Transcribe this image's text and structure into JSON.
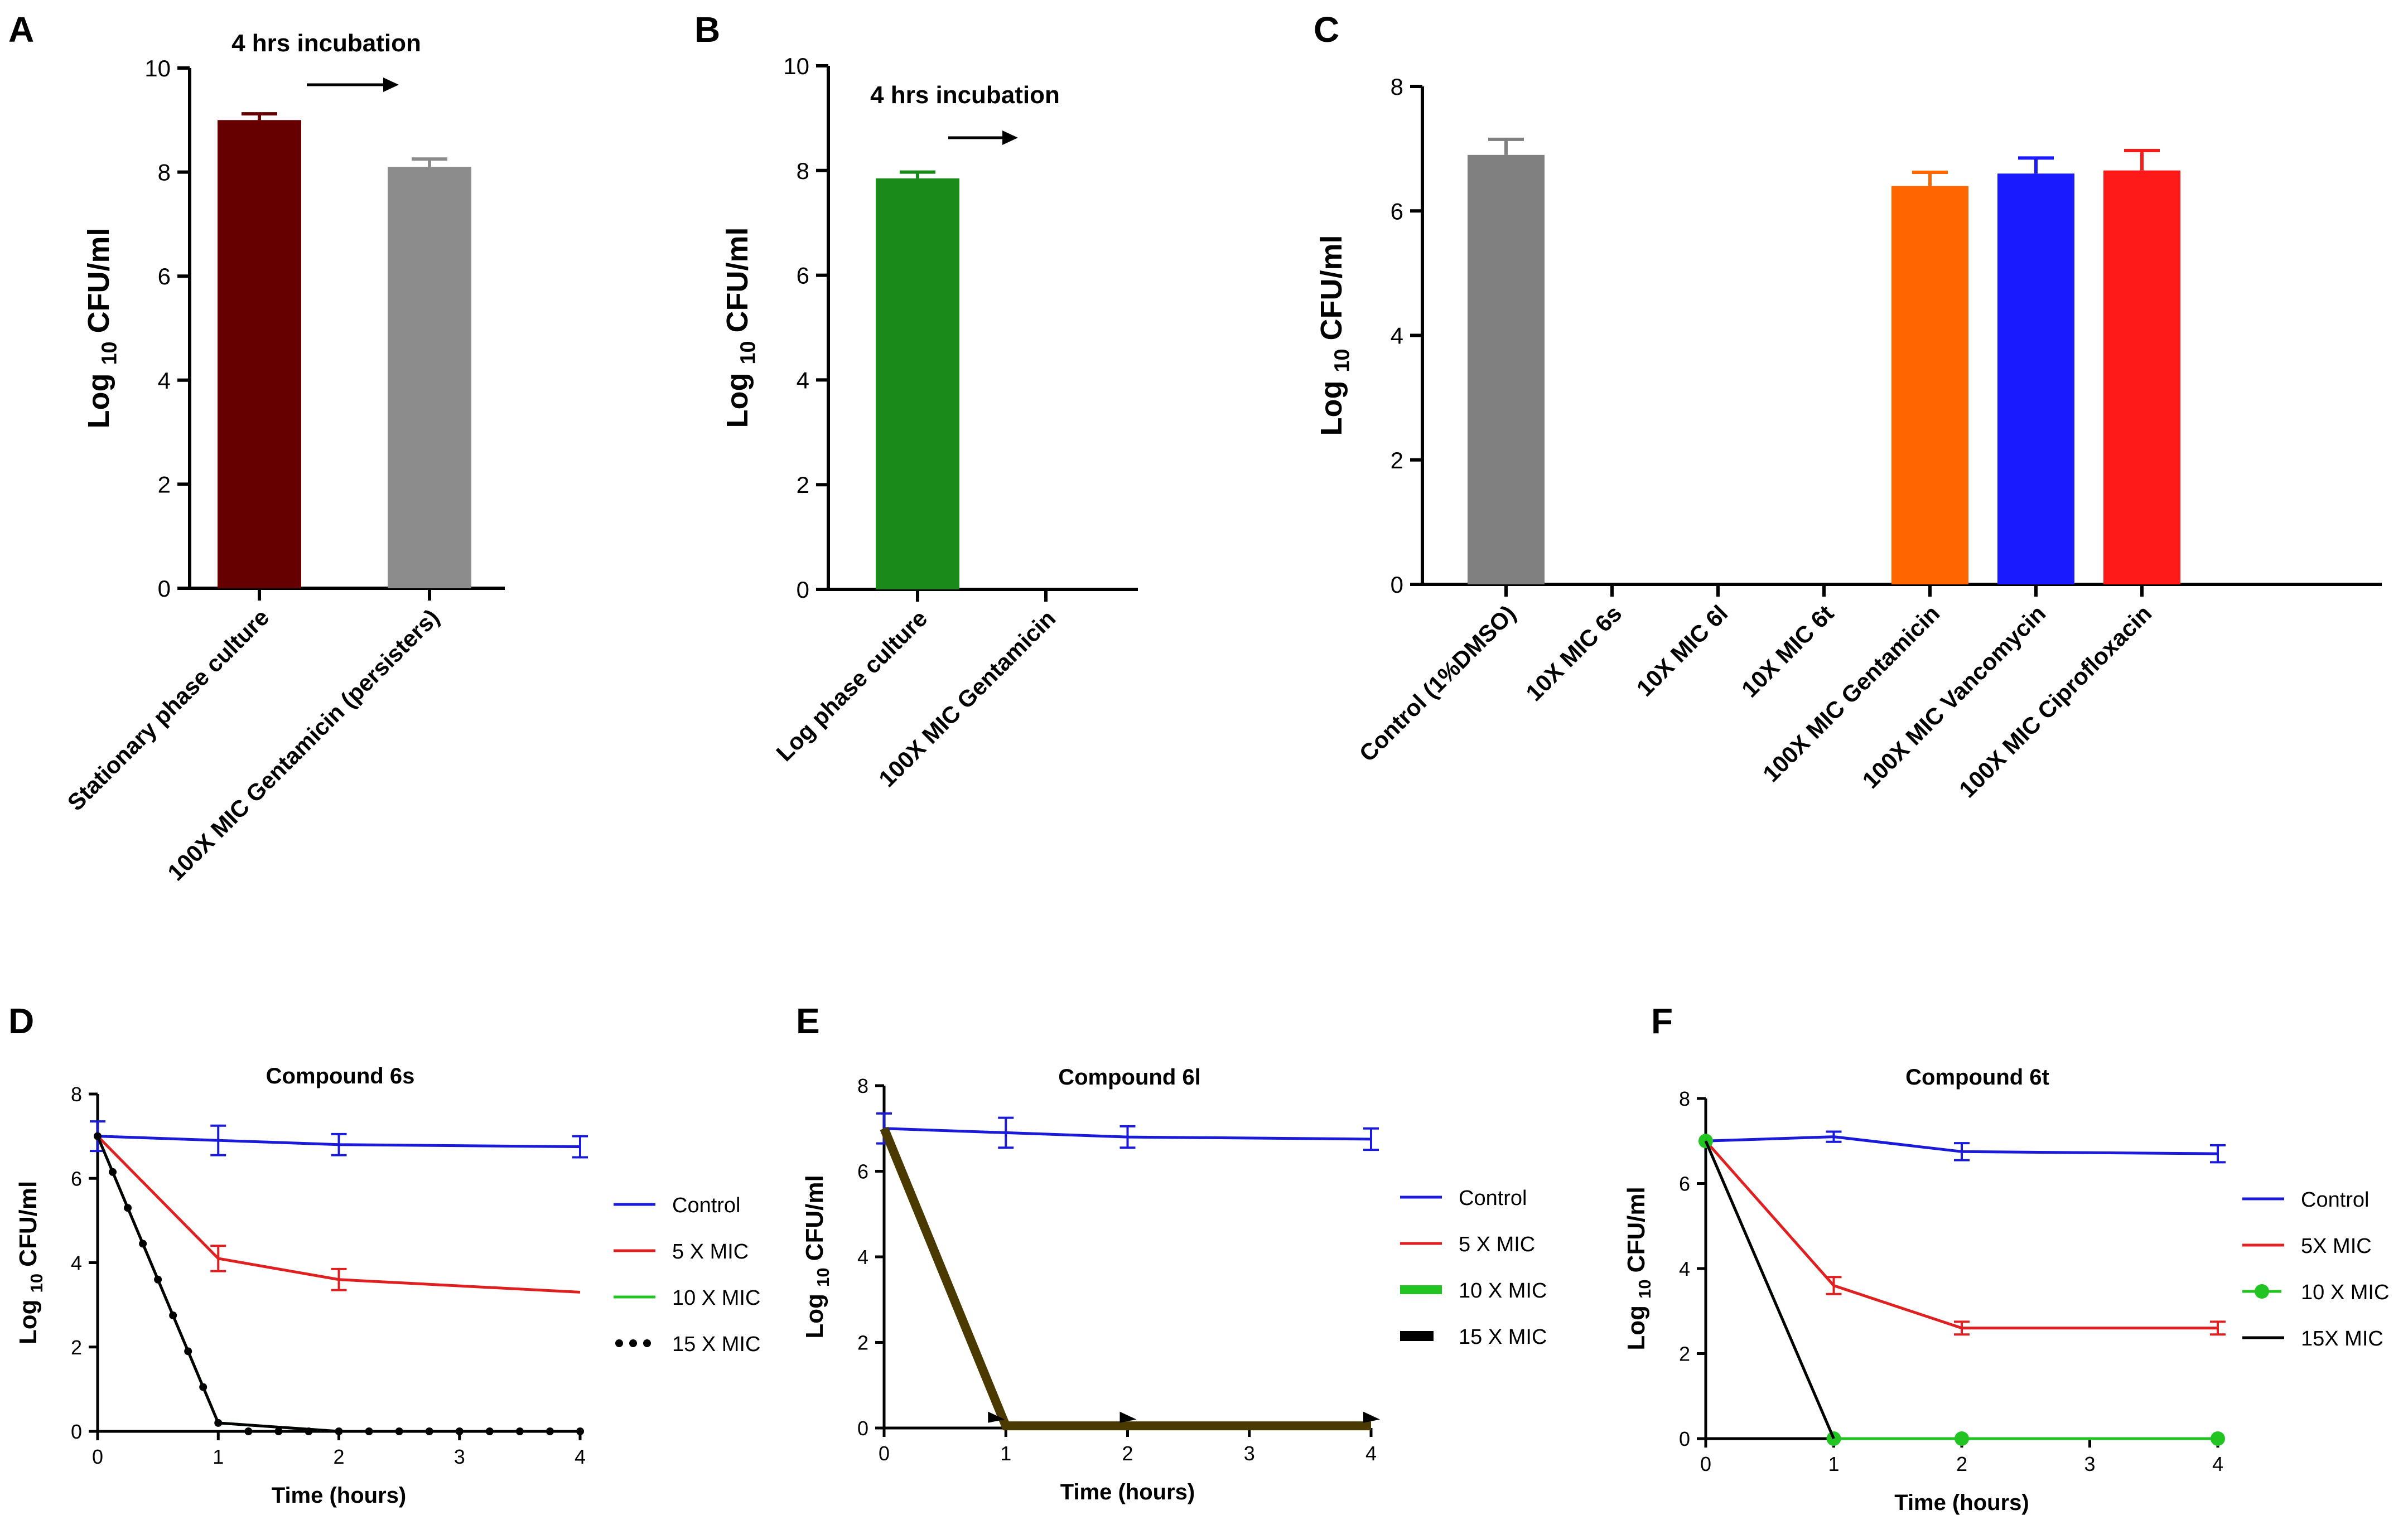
{
  "chart_data": [
    {
      "id": "A",
      "panel_label": "A",
      "type": "bar",
      "ylabel": "Log 10 CFU/ml",
      "ylabel_main": "Log",
      "ylabel_sub": "10",
      "ylabel_tail": "CFU/ml",
      "ylim": [
        0,
        10
      ],
      "yticks": [
        "0",
        "2",
        "4",
        "6",
        "8",
        "10"
      ],
      "annotation": "4 hrs incubation",
      "categories": [
        "Stationary phase culture",
        "100X MIC Gentamicin (persisters)"
      ],
      "values": [
        9.0,
        8.1
      ],
      "errors": [
        0.12,
        0.15
      ],
      "colors": [
        "#660000",
        "#8c8c8c"
      ]
    },
    {
      "id": "B",
      "panel_label": "B",
      "type": "bar",
      "ylabel": "Log 10 CFU/ml",
      "ylabel_main": "Log",
      "ylabel_sub": "10",
      "ylabel_tail": "CFU/ml",
      "ylim": [
        0,
        10
      ],
      "yticks": [
        "0",
        "2",
        "4",
        "6",
        "8",
        "10"
      ],
      "annotation": "4 hrs incubation",
      "categories": [
        "Log phase culture",
        "100X MIC Gentamicin"
      ],
      "values": [
        7.85,
        0
      ],
      "errors": [
        0.12,
        0
      ],
      "colors": [
        "#1a8a1a",
        "#1a8a1a"
      ]
    },
    {
      "id": "C",
      "panel_label": "C",
      "type": "bar",
      "ylabel": "Log 10 CFU/ml",
      "ylabel_main": "Log",
      "ylabel_sub": "10",
      "ylabel_tail": "CFU/ml",
      "ylim": [
        0,
        8
      ],
      "yticks": [
        "0",
        "2",
        "4",
        "6",
        "8"
      ],
      "categories": [
        "Control (1%DMSO)",
        "10X MIC 6s",
        "10X MIC 6l",
        "10X MIC 6t",
        "100X MIC Gentamicin",
        "100X MIC Vancomycin",
        "100X MIC Ciprofloxacin"
      ],
      "values": [
        6.9,
        0,
        0,
        0,
        6.4,
        6.6,
        6.65
      ],
      "errors": [
        0.25,
        0,
        0,
        0,
        0.22,
        0.25,
        0.32
      ],
      "colors": [
        "#808080",
        "#808080",
        "#808080",
        "#808080",
        "#ff6600",
        "#1a1aff",
        "#ff1a1a"
      ]
    },
    {
      "id": "D",
      "panel_label": "D",
      "type": "line",
      "title": "Compound 6s",
      "xlabel": "Time (hours)",
      "ylabel": "Log 10 CFU/ml",
      "ylabel_main": "Log",
      "ylabel_sub": "10",
      "ylabel_tail": "CFU/ml",
      "xlim": [
        0,
        4
      ],
      "ylim": [
        0,
        8
      ],
      "xticks": [
        "0",
        "1",
        "2",
        "3",
        "4"
      ],
      "yticks": [
        "0",
        "2",
        "4",
        "6",
        "8"
      ],
      "series": [
        {
          "name": "Control",
          "color": "#1a1adb",
          "marker": "none",
          "x": [
            0,
            1,
            2,
            4
          ],
          "y": [
            7.0,
            6.9,
            6.8,
            6.75
          ],
          "err": [
            0.35,
            0.35,
            0.25,
            0.25
          ]
        },
        {
          "name": "5 X MIC",
          "color": "#e02020",
          "marker": "none",
          "x": [
            0,
            1,
            2,
            4
          ],
          "y": [
            7.0,
            4.1,
            3.6,
            3.3
          ],
          "err": [
            0,
            0.3,
            0.25,
            0
          ]
        },
        {
          "name": "10 X MIC",
          "color": "#22c422",
          "marker": "none",
          "x": [
            0,
            1,
            2,
            4
          ],
          "y": [
            7.0,
            0.2,
            0,
            0
          ],
          "err": [
            0,
            0,
            0,
            0
          ]
        },
        {
          "name": "15 X MIC",
          "color": "#000000",
          "marker": "dots",
          "x": [
            0,
            1,
            2,
            4
          ],
          "y": [
            7.0,
            0.2,
            0,
            0
          ],
          "err": [
            0,
            0,
            0,
            0
          ]
        }
      ]
    },
    {
      "id": "E",
      "panel_label": "E",
      "type": "line",
      "title": "Compound 6l",
      "xlabel": "Time (hours)",
      "ylabel": "Log 10 CFU/ml",
      "ylabel_main": "Log",
      "ylabel_sub": "10",
      "ylabel_tail": "CFU/ml",
      "xlim": [
        0,
        4
      ],
      "ylim": [
        0,
        8
      ],
      "xticks": [
        "0",
        "1",
        "2",
        "3",
        "4"
      ],
      "yticks": [
        "0",
        "2",
        "4",
        "6",
        "8"
      ],
      "series": [
        {
          "name": "Control",
          "color": "#1a1adb",
          "marker": "none",
          "x": [
            0,
            1,
            2,
            4
          ],
          "y": [
            7.0,
            6.9,
            6.8,
            6.75
          ],
          "err": [
            0.35,
            0.35,
            0.25,
            0.25
          ]
        },
        {
          "name": "5 X MIC",
          "color": "#e02020",
          "marker": "none",
          "x": [
            0,
            1,
            2,
            4
          ],
          "y": [
            7.0,
            0.05,
            0.05,
            0.05
          ],
          "err": [
            0,
            0,
            0,
            0
          ]
        },
        {
          "name": "10 X MIC",
          "color": "#22c422",
          "marker": "none",
          "x": [
            0,
            1,
            2,
            4
          ],
          "y": [
            7.0,
            0.05,
            0.05,
            0.05
          ],
          "err": [
            0,
            0,
            0,
            0
          ]
        },
        {
          "name": "15 X MIC",
          "color": "#000000",
          "marker": "triangles",
          "x": [
            0,
            1,
            2,
            4
          ],
          "y": [
            7.0,
            0.05,
            0.05,
            0.05
          ],
          "err": [
            0,
            0,
            0,
            0
          ]
        }
      ]
    },
    {
      "id": "F",
      "panel_label": "F",
      "type": "line",
      "title": "Compound 6t",
      "xlabel": "Time (hours)",
      "ylabel": "Log 10 CFU/ml",
      "ylabel_main": "Log",
      "ylabel_sub": "10",
      "ylabel_tail": "CFU/ml",
      "xlim": [
        0,
        4
      ],
      "ylim": [
        0,
        8
      ],
      "xticks": [
        "0",
        "1",
        "2",
        "3",
        "4"
      ],
      "yticks": [
        "0",
        "2",
        "4",
        "6",
        "8"
      ],
      "series": [
        {
          "name": "Control",
          "color": "#1a1adb",
          "marker": "none",
          "x": [
            0,
            1,
            2,
            4
          ],
          "y": [
            7.0,
            7.1,
            6.75,
            6.7
          ],
          "err": [
            0,
            0.12,
            0.2,
            0.2
          ]
        },
        {
          "name": "5X MIC",
          "color": "#e02020",
          "marker": "none",
          "x": [
            0,
            1,
            2,
            4
          ],
          "y": [
            7.0,
            3.6,
            2.6,
            2.6
          ],
          "err": [
            0,
            0.2,
            0.15,
            0.15
          ]
        },
        {
          "name": "10 X MIC",
          "color": "#22c422",
          "marker": "circles",
          "x": [
            0,
            1,
            2,
            4
          ],
          "y": [
            7.0,
            0,
            0,
            0
          ],
          "err": [
            0,
            0,
            0,
            0
          ]
        },
        {
          "name": "15X MIC",
          "color": "#000000",
          "marker": "none",
          "x": [
            0,
            1
          ],
          "y": [
            7.0,
            0
          ],
          "err": [
            0,
            0
          ]
        }
      ]
    }
  ]
}
